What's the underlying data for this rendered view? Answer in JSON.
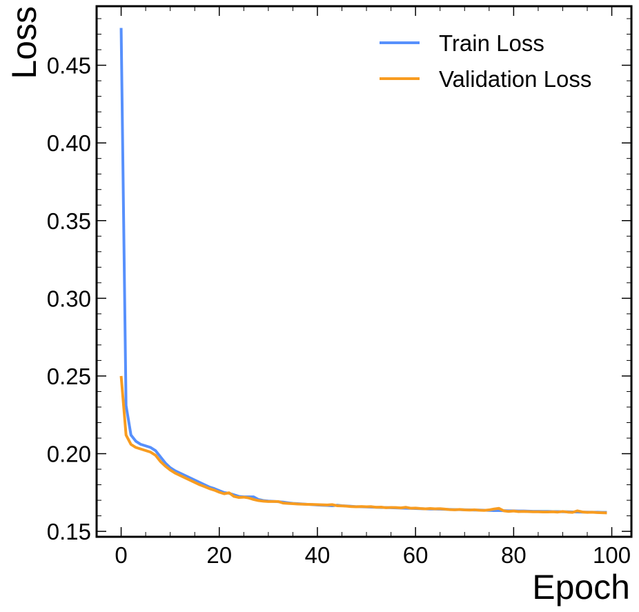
{
  "chart_data": {
    "type": "line",
    "title": "",
    "xlabel": "Epoch",
    "ylabel": "Loss",
    "xlim": [
      -5,
      104
    ],
    "ylim": [
      0.1465,
      0.488
    ],
    "xticks": [
      0,
      20,
      40,
      60,
      80,
      100
    ],
    "xtick_labels": [
      "0",
      "20",
      "40",
      "60",
      "80",
      "100"
    ],
    "yticks": [
      0.15,
      0.2,
      0.25,
      0.3,
      0.35,
      0.4,
      0.45
    ],
    "ytick_labels": [
      "0.15",
      "0.20",
      "0.25",
      "0.30",
      "0.35",
      "0.40",
      "0.45"
    ],
    "grid": false,
    "legend_position": "top-right",
    "series": [
      {
        "name": "Train Loss",
        "color": "#5790fc",
        "x": [
          0,
          1,
          2,
          3,
          4,
          5,
          6,
          7,
          8,
          9,
          10,
          11,
          12,
          13,
          14,
          15,
          16,
          17,
          18,
          19,
          20,
          21,
          22,
          23,
          24,
          25,
          26,
          27,
          28,
          29,
          30,
          31,
          32,
          33,
          34,
          35,
          36,
          37,
          38,
          39,
          40,
          41,
          42,
          43,
          44,
          45,
          46,
          47,
          48,
          49,
          50,
          51,
          52,
          53,
          54,
          55,
          56,
          57,
          58,
          59,
          60,
          61,
          62,
          63,
          64,
          65,
          66,
          67,
          68,
          69,
          70,
          71,
          72,
          73,
          74,
          75,
          76,
          77,
          78,
          79,
          80,
          81,
          82,
          83,
          84,
          85,
          86,
          87,
          88,
          89,
          90,
          91,
          92,
          93,
          94,
          95,
          96,
          97,
          98,
          99
        ],
        "values": [
          0.474,
          0.231,
          0.212,
          0.208,
          0.206,
          0.205,
          0.204,
          0.202,
          0.198,
          0.194,
          0.191,
          0.189,
          0.1875,
          0.186,
          0.1845,
          0.183,
          0.1815,
          0.18,
          0.1785,
          0.1775,
          0.1762,
          0.175,
          0.1745,
          0.1735,
          0.1725,
          0.1722,
          0.1722,
          0.1722,
          0.1705,
          0.1698,
          0.1695,
          0.1693,
          0.1691,
          0.1688,
          0.1684,
          0.168,
          0.1678,
          0.1676,
          0.1674,
          0.1672,
          0.167,
          0.1668,
          0.1667,
          0.1665,
          0.1668,
          0.1665,
          0.1663,
          0.1661,
          0.1659,
          0.1658,
          0.1657,
          0.1656,
          0.1655,
          0.1654,
          0.1653,
          0.1652,
          0.1651,
          0.165,
          0.1649,
          0.1648,
          0.1647,
          0.1646,
          0.1645,
          0.1644,
          0.1644,
          0.1643,
          0.1642,
          0.1641,
          0.164,
          0.164,
          0.1639,
          0.1638,
          0.1637,
          0.1637,
          0.1636,
          0.1635,
          0.1634,
          0.1634,
          0.1633,
          0.1632,
          0.1632,
          0.1631,
          0.1631,
          0.163,
          0.1629,
          0.1629,
          0.1628,
          0.1628,
          0.1627,
          0.1627,
          0.1626,
          0.1626,
          0.1625,
          0.1625,
          0.1624,
          0.1624,
          0.1623,
          0.1623,
          0.1622,
          0.1622
        ]
      },
      {
        "name": "Validation Loss",
        "color": "#f89c20",
        "x": [
          0,
          1,
          2,
          3,
          4,
          5,
          6,
          7,
          8,
          9,
          10,
          11,
          12,
          13,
          14,
          15,
          16,
          17,
          18,
          19,
          20,
          21,
          22,
          23,
          24,
          25,
          26,
          27,
          28,
          29,
          30,
          31,
          32,
          33,
          34,
          35,
          36,
          37,
          38,
          39,
          40,
          41,
          42,
          43,
          44,
          45,
          46,
          47,
          48,
          49,
          50,
          51,
          52,
          53,
          54,
          55,
          56,
          57,
          58,
          59,
          60,
          61,
          62,
          63,
          64,
          65,
          66,
          67,
          68,
          69,
          70,
          71,
          72,
          73,
          74,
          75,
          76,
          77,
          78,
          79,
          80,
          81,
          82,
          83,
          84,
          85,
          86,
          87,
          88,
          89,
          90,
          91,
          92,
          93,
          94,
          95,
          96,
          97,
          98,
          99
        ],
        "values": [
          0.25,
          0.212,
          0.206,
          0.204,
          0.203,
          0.202,
          0.201,
          0.199,
          0.195,
          0.192,
          0.1895,
          0.1875,
          0.186,
          0.1845,
          0.183,
          0.1815,
          0.18,
          0.1788,
          0.1775,
          0.1765,
          0.1752,
          0.1742,
          0.1748,
          0.1725,
          0.1718,
          0.172,
          0.1715,
          0.1705,
          0.1698,
          0.1694,
          0.1692,
          0.1692,
          0.1692,
          0.1682,
          0.168,
          0.1678,
          0.1676,
          0.1675,
          0.1674,
          0.1673,
          0.1672,
          0.1671,
          0.167,
          0.1672,
          0.1665,
          0.1664,
          0.1662,
          0.1659,
          0.1658,
          0.166,
          0.1658,
          0.1659,
          0.1655,
          0.1656,
          0.1652,
          0.1654,
          0.1653,
          0.1651,
          0.1655,
          0.1649,
          0.165,
          0.1647,
          0.1645,
          0.1647,
          0.1645,
          0.1646,
          0.1643,
          0.164,
          0.1639,
          0.1641,
          0.1638,
          0.1637,
          0.1639,
          0.1636,
          0.1635,
          0.1638,
          0.1644,
          0.1648,
          0.1632,
          0.1628,
          0.1631,
          0.1627,
          0.1628,
          0.1627,
          0.1626,
          0.1626,
          0.1625,
          0.1625,
          0.1626,
          0.1624,
          0.1628,
          0.1624,
          0.1622,
          0.1632,
          0.1625,
          0.1622,
          0.1623,
          0.1621,
          0.162,
          0.1619
        ]
      }
    ]
  }
}
